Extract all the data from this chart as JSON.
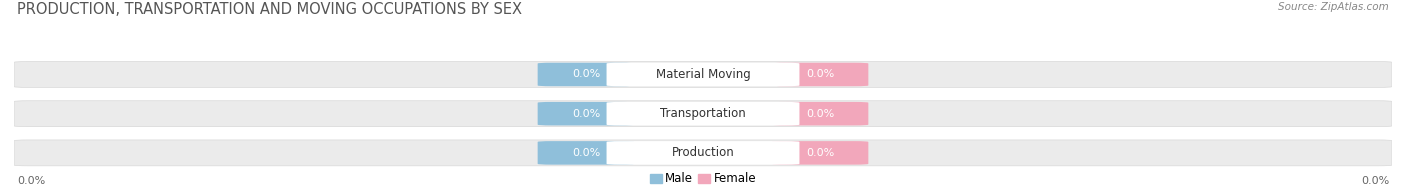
{
  "title": "PRODUCTION, TRANSPORTATION AND MOVING OCCUPATIONS BY SEX",
  "source": "Source: ZipAtlas.com",
  "categories": [
    "Production",
    "Transportation",
    "Material Moving"
  ],
  "male_values": [
    0.0,
    0.0,
    0.0
  ],
  "female_values": [
    0.0,
    0.0,
    0.0
  ],
  "male_color": "#8fbfda",
  "female_color": "#f2a7bb",
  "bar_bg_color": "#ebebeb",
  "bar_bg_edge_color": "#d8d8d8",
  "title_fontsize": 10.5,
  "source_fontsize": 7.5,
  "cat_label_fontsize": 8.5,
  "val_label_fontsize": 8,
  "axis_tick_fontsize": 8,
  "axis_label": "0.0%",
  "figsize": [
    14.06,
    1.96
  ],
  "dpi": 100
}
